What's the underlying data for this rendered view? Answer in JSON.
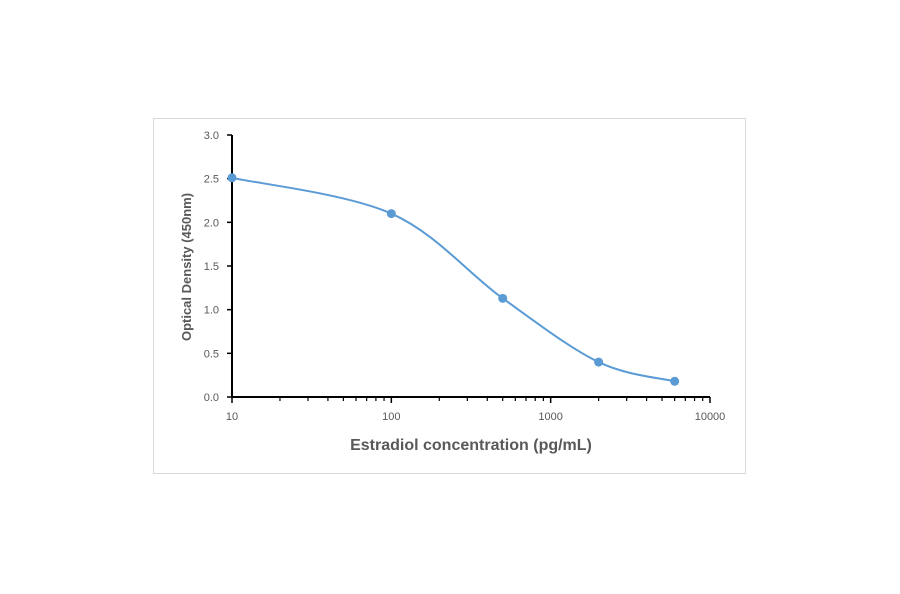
{
  "chart_data": {
    "type": "line",
    "title": "",
    "xlabel": "Estradiol concentration (pg/mL)",
    "ylabel": "Optical Density (450nm)",
    "x_scale": "log",
    "xlim": [
      10,
      10000
    ],
    "ylim": [
      0,
      3.0
    ],
    "x_ticks": [
      "10",
      "100",
      "1000",
      "10000"
    ],
    "y_ticks": [
      "0.0",
      "0.5",
      "1.0",
      "1.5",
      "2.0",
      "2.5",
      "3.0"
    ],
    "grid": false,
    "legend": "none",
    "smooth": true,
    "series": [
      {
        "color": "#5b9bd5",
        "x": [
          10,
          100,
          500,
          2000,
          6000
        ],
        "y": [
          2.51,
          2.1,
          1.13,
          0.4,
          0.18
        ]
      }
    ]
  }
}
